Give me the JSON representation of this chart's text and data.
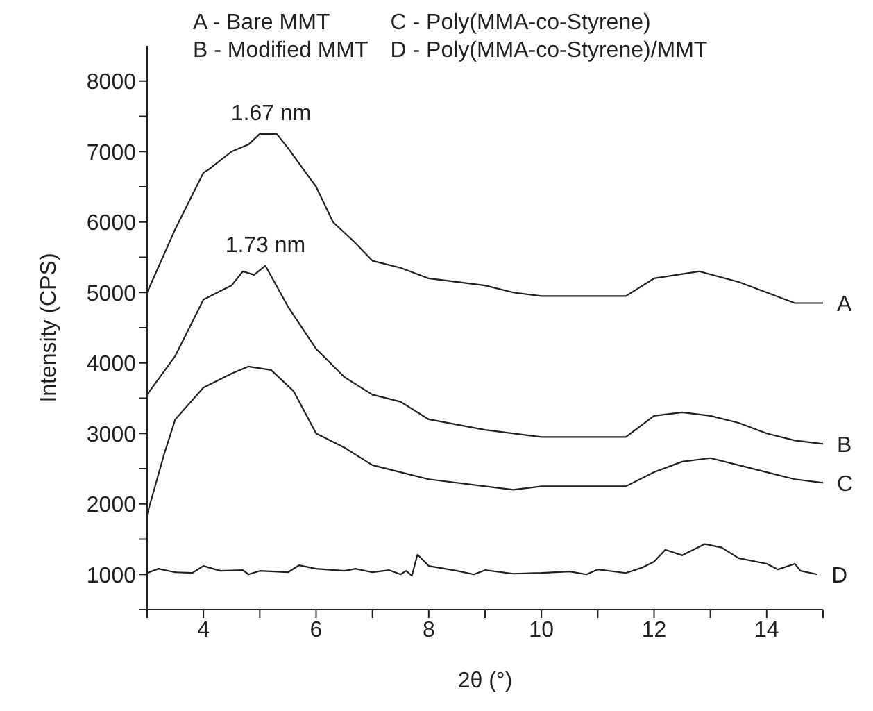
{
  "chart_data": {
    "type": "line",
    "xlabel": "2θ (°)",
    "ylabel": "Intensity (CPS)",
    "annotations": [
      "A - Bare MMT",
      "B - Modified MMT",
      "C - Poly(MMA-co-Styrene)",
      "D - Poly(MMA-co-Styrene)/MMT",
      {
        "text": "1.67 nm",
        "x": 5.2,
        "y": 7250
      },
      {
        "text": "1.73 nm",
        "x": 5.1,
        "y": 5380
      }
    ],
    "xlim": [
      3,
      15
    ],
    "xticks": [
      {
        "value": 3,
        "label": null
      },
      4,
      {
        "value": 5,
        "label": null
      },
      6,
      {
        "value": 7,
        "label": null
      },
      8,
      {
        "value": 9,
        "label": null
      },
      10,
      {
        "value": 11,
        "label": null
      },
      12,
      {
        "value": 13,
        "label": null
      },
      14,
      {
        "value": 15,
        "label": null
      }
    ],
    "ylim": [
      500,
      8500
    ],
    "yticks": [
      {
        "value": 500,
        "label": null
      },
      1000,
      {
        "value": 1500,
        "label": null
      },
      2000,
      {
        "value": 2500,
        "label": null
      },
      3000,
      {
        "value": 3500,
        "label": null
      },
      4000,
      {
        "value": 4500,
        "label": null
      },
      5000,
      {
        "value": 5500,
        "label": null
      },
      6000,
      {
        "value": 6500,
        "label": null
      },
      7000,
      {
        "value": 7500,
        "label": null
      },
      8000
    ],
    "marker": "none",
    "line_style": "solid",
    "series": [
      {
        "name": "A",
        "color": "#231f20",
        "x": [
          3,
          3.5,
          4,
          4.1,
          4.5,
          4.8,
          5,
          5.3,
          5.5,
          6,
          6.3,
          6.7,
          7,
          7.5,
          8,
          9,
          9.5,
          10,
          11,
          11.5,
          12,
          12.8,
          13.5,
          14,
          14.5,
          15
        ],
        "values": [
          5000,
          5900,
          6700,
          6750,
          7000,
          7100,
          7250,
          7250,
          7050,
          6500,
          6000,
          5700,
          5450,
          5350,
          5200,
          5100,
          5000,
          4950,
          4950,
          4950,
          5200,
          5300,
          5150,
          5000,
          4850,
          4850
        ]
      },
      {
        "name": "B",
        "color": "#231f20",
        "x": [
          3,
          3.5,
          4,
          4.5,
          4.7,
          4.9,
          5.1,
          5.5,
          6,
          6.5,
          7,
          7.5,
          8,
          9,
          10,
          11,
          11.5,
          12,
          12.5,
          13,
          13.5,
          14,
          14.5,
          15
        ],
        "values": [
          3550,
          4100,
          4900,
          5100,
          5300,
          5250,
          5380,
          4800,
          4200,
          3800,
          3550,
          3450,
          3200,
          3050,
          2950,
          2950,
          2950,
          3250,
          3300,
          3250,
          3150,
          3000,
          2900,
          2850
        ]
      },
      {
        "name": "C",
        "color": "#231f20",
        "x": [
          3,
          3.3,
          3.5,
          4,
          4.5,
          4.8,
          5.2,
          5.6,
          6,
          6.5,
          7,
          7.5,
          8,
          9,
          9.5,
          10,
          10.5,
          11,
          11.5,
          12,
          12.5,
          13,
          13.5,
          14,
          14.5,
          15
        ],
        "values": [
          1850,
          2700,
          3200,
          3650,
          3850,
          3950,
          3900,
          3600,
          3000,
          2800,
          2550,
          2450,
          2350,
          2250,
          2200,
          2250,
          2250,
          2250,
          2250,
          2450,
          2600,
          2650,
          2550,
          2450,
          2350,
          2300
        ]
      },
      {
        "name": "D",
        "color": "#231f20",
        "x": [
          3,
          3.2,
          3.5,
          3.8,
          4,
          4.3,
          4.7,
          4.8,
          5,
          5.5,
          5.7,
          6,
          6.5,
          6.7,
          7,
          7.3,
          7.5,
          7.6,
          7.7,
          7.8,
          8,
          8.5,
          8.8,
          9,
          9.5,
          10,
          10.5,
          10.8,
          11,
          11.5,
          11.8,
          12,
          12.2,
          12.5,
          12.9,
          13.2,
          13.5,
          14,
          14.2,
          14.5,
          14.6,
          14.9
        ],
        "values": [
          1020,
          1080,
          1030,
          1020,
          1120,
          1050,
          1060,
          1000,
          1050,
          1030,
          1130,
          1080,
          1050,
          1080,
          1030,
          1060,
          1000,
          1050,
          980,
          1280,
          1120,
          1050,
          1000,
          1060,
          1010,
          1020,
          1040,
          1000,
          1070,
          1020,
          1100,
          1180,
          1350,
          1270,
          1430,
          1380,
          1230,
          1150,
          1070,
          1150,
          1050,
          1000
        ]
      }
    ]
  }
}
